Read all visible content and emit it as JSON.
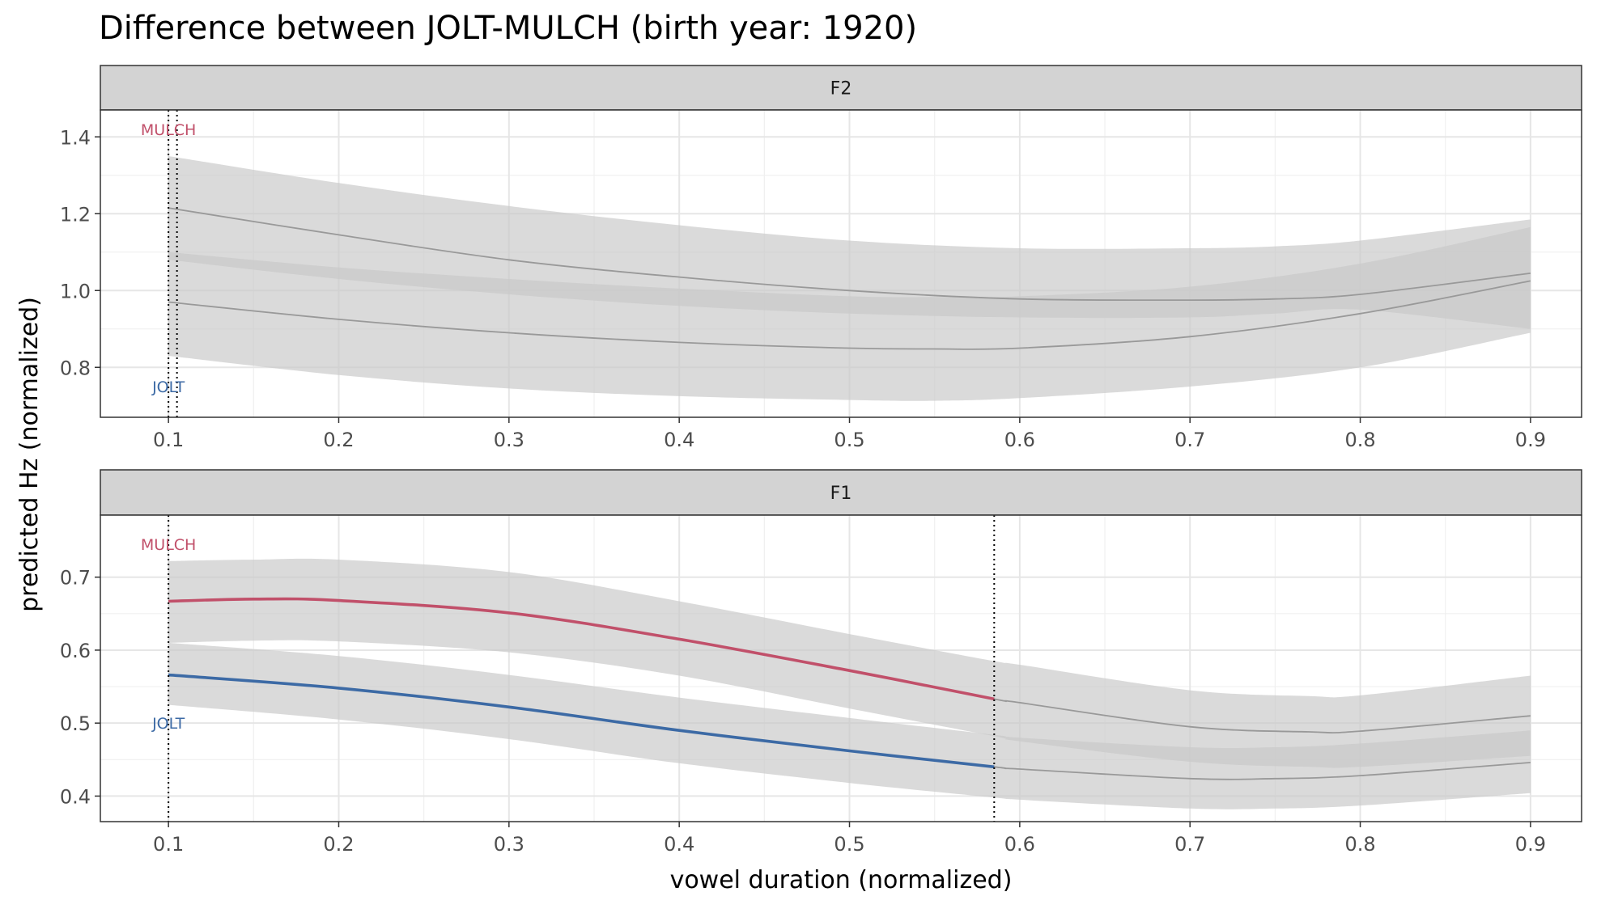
{
  "chart_data": {
    "type": "line",
    "title": "Difference between JOLT-MULCH (birth year: 1920)",
    "xlabel": "vowel duration (normalized)",
    "ylabel": "predicted Hz (normalized)",
    "grid": true,
    "xlim": [
      0.06,
      0.93
    ],
    "x_ticks": [
      0.1,
      0.2,
      0.3,
      0.4,
      0.5,
      0.6,
      0.7,
      0.8,
      0.9
    ],
    "colors": {
      "MULCH": "#c1506a",
      "JOLT": "#3c6aa5",
      "band": "#c8c8c8",
      "nonsig_line": "#999999",
      "strip": "#d3d3d3"
    },
    "panels": [
      {
        "strip": "F2",
        "ylim": [
          0.67,
          1.47
        ],
        "y_ticks": [
          0.8,
          1.0,
          1.2,
          1.4
        ],
        "significance_lines": [
          0.1,
          0.105
        ],
        "labels": [
          {
            "text": "MULCH",
            "x": 0.1,
            "y": 1.42,
            "color": "#c1506a"
          },
          {
            "text": "JOLT",
            "x": 0.1,
            "y": 0.75,
            "color": "#3c6aa5"
          }
        ],
        "series": [
          {
            "name": "MULCH",
            "x": [
              0.1,
              0.2,
              0.3,
              0.4,
              0.5,
              0.6,
              0.7,
              0.75,
              0.8,
              0.9
            ],
            "y": [
              1.215,
              1.145,
              1.08,
              1.035,
              1.0,
              0.978,
              0.975,
              0.978,
              0.99,
              1.045
            ],
            "ymin": [
              1.08,
              1.03,
              0.99,
              0.96,
              0.94,
              0.93,
              0.93,
              0.94,
              0.95,
              0.9
            ],
            "ymax": [
              1.35,
              1.28,
              1.22,
              1.17,
              1.13,
              1.11,
              1.11,
              1.115,
              1.13,
              1.185
            ],
            "significant_range": null
          },
          {
            "name": "JOLT",
            "x": [
              0.1,
              0.2,
              0.3,
              0.4,
              0.5,
              0.55,
              0.6,
              0.7,
              0.8,
              0.9
            ],
            "y": [
              0.97,
              0.925,
              0.89,
              0.865,
              0.85,
              0.848,
              0.85,
              0.88,
              0.94,
              1.025
            ],
            "ymin": [
              0.83,
              0.78,
              0.745,
              0.725,
              0.715,
              0.713,
              0.72,
              0.75,
              0.8,
              0.89
            ],
            "ymax": [
              1.1,
              1.06,
              1.03,
              1.005,
              0.985,
              0.983,
              0.985,
              1.01,
              1.07,
              1.165
            ],
            "significant_range": null
          }
        ]
      },
      {
        "strip": "F1",
        "ylim": [
          0.365,
          0.785
        ],
        "y_ticks": [
          0.4,
          0.5,
          0.6,
          0.7
        ],
        "significance_lines": [
          0.1,
          0.585
        ],
        "labels": [
          {
            "text": "MULCH",
            "x": 0.1,
            "y": 0.745,
            "color": "#c1506a"
          },
          {
            "text": "JOLT",
            "x": 0.1,
            "y": 0.5,
            "color": "#3c6aa5"
          }
        ],
        "series": [
          {
            "name": "MULCH",
            "x": [
              0.1,
              0.15,
              0.2,
              0.3,
              0.4,
              0.5,
              0.585,
              0.6,
              0.7,
              0.77,
              0.8,
              0.9
            ],
            "y": [
              0.667,
              0.67,
              0.668,
              0.651,
              0.615,
              0.572,
              0.533,
              0.528,
              0.495,
              0.488,
              0.489,
              0.51
            ],
            "ymin": [
              0.61,
              0.613,
              0.612,
              0.597,
              0.565,
              0.52,
              0.482,
              0.475,
              0.447,
              0.44,
              0.44,
              0.455
            ],
            "ymax": [
              0.722,
              0.724,
              0.724,
              0.707,
              0.667,
              0.622,
              0.585,
              0.58,
              0.545,
              0.537,
              0.538,
              0.565
            ],
            "significant_range": [
              0.1,
              0.585
            ]
          },
          {
            "name": "JOLT",
            "x": [
              0.1,
              0.2,
              0.3,
              0.4,
              0.5,
              0.585,
              0.6,
              0.7,
              0.75,
              0.8,
              0.9
            ],
            "y": [
              0.566,
              0.548,
              0.522,
              0.49,
              0.462,
              0.44,
              0.437,
              0.424,
              0.424,
              0.428,
              0.446
            ],
            "ymin": [
              0.525,
              0.505,
              0.478,
              0.445,
              0.418,
              0.398,
              0.395,
              0.383,
              0.383,
              0.387,
              0.404
            ],
            "ymax": [
              0.61,
              0.592,
              0.566,
              0.535,
              0.507,
              0.484,
              0.48,
              0.467,
              0.467,
              0.472,
              0.49
            ],
            "significant_range": [
              0.1,
              0.585
            ]
          }
        ]
      }
    ]
  }
}
